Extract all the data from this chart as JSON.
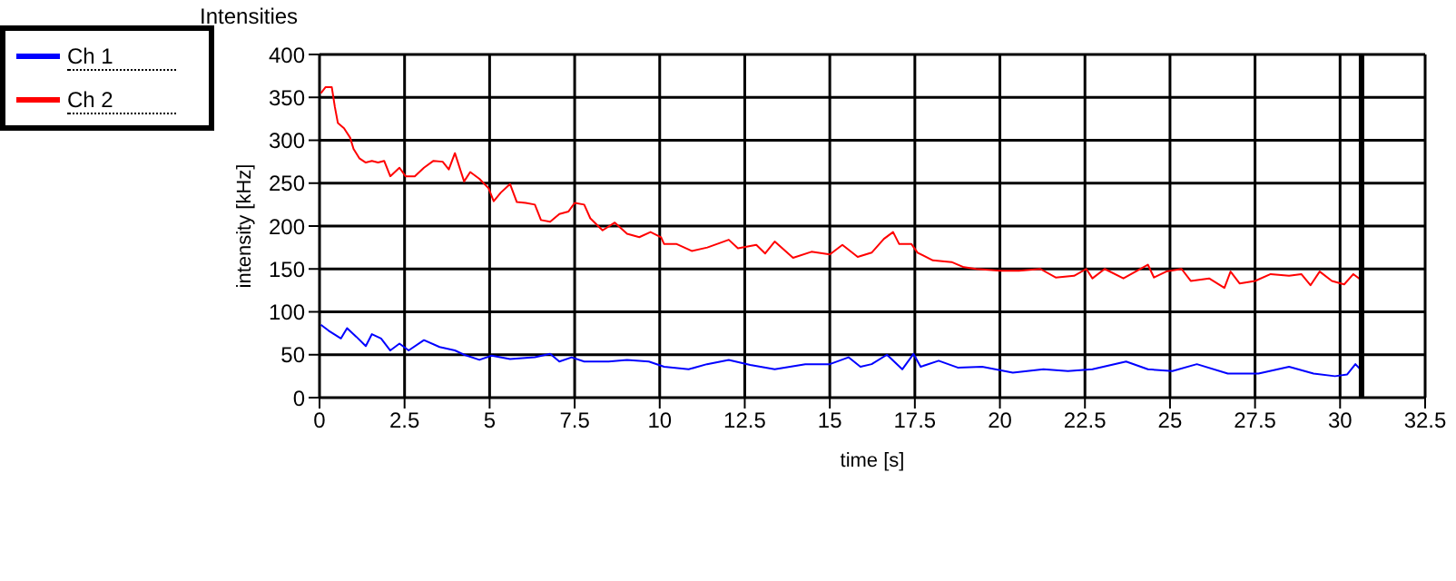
{
  "chart_data": {
    "type": "line",
    "title": "Intensities",
    "xlabel": "time [s]",
    "ylabel": "intensity [kHz]",
    "xlim": [
      0,
      32.5
    ],
    "xticks": [
      0,
      2.5,
      5,
      7.5,
      10,
      12.5,
      15,
      17.5,
      20,
      22.5,
      25,
      27.5,
      30,
      32.5
    ],
    "ylim": [
      0,
      400
    ],
    "yticks": [
      0,
      50,
      100,
      150,
      200,
      250,
      300,
      350,
      400
    ],
    "grid": true,
    "legend": "top left",
    "marker": "none",
    "line_style": "solid",
    "ref_lines": [
      {
        "axis": "x",
        "value": 30.63,
        "color": "#000000"
      }
    ],
    "series": [
      {
        "name": "Ch 1",
        "color": "#0000ff",
        "x": [
          0.04,
          0.27,
          0.63,
          0.81,
          1.08,
          1.36,
          1.54,
          1.81,
          2.08,
          2.35,
          2.62,
          3.07,
          3.53,
          3.98,
          4.25,
          4.7,
          5.06,
          5.6,
          6.33,
          6.78,
          7.05,
          7.41,
          7.78,
          8.5,
          9.04,
          9.68,
          10.13,
          10.85,
          11.39,
          12.03,
          12.66,
          13.38,
          14.28,
          15.0,
          15.55,
          15.9,
          16.23,
          16.68,
          17.13,
          17.46,
          17.67,
          18.2,
          18.76,
          19.48,
          20.38,
          21.28,
          22.0,
          22.72,
          23.71,
          24.35,
          25.07,
          25.79,
          26.7,
          27.6,
          28.5,
          29.22,
          29.85,
          30.21,
          30.45,
          30.62
        ],
        "values": [
          85,
          78,
          69,
          81,
          71,
          60,
          74,
          69,
          55,
          63,
          55,
          67,
          59,
          55,
          50,
          44,
          49,
          45,
          47,
          51,
          42,
          47,
          42,
          42,
          44,
          42,
          36,
          33,
          39,
          44,
          38,
          33,
          39,
          39,
          47,
          36,
          39,
          50,
          33,
          51,
          36,
          43,
          35,
          36,
          29,
          33,
          31,
          33,
          42,
          33,
          31,
          39,
          28,
          28,
          36,
          28,
          25,
          27,
          39,
          32
        ]
      },
      {
        "name": "Ch 2",
        "color": "#ff0000",
        "x": [
          0.04,
          0.18,
          0.36,
          0.45,
          0.54,
          0.72,
          0.9,
          1.0,
          1.17,
          1.36,
          1.54,
          1.72,
          1.9,
          2.08,
          2.35,
          2.53,
          2.8,
          3.07,
          3.35,
          3.62,
          3.8,
          3.98,
          4.25,
          4.43,
          4.7,
          4.97,
          5.12,
          5.33,
          5.6,
          5.8,
          6.06,
          6.33,
          6.51,
          6.78,
          7.05,
          7.32,
          7.5,
          7.78,
          7.96,
          8.32,
          8.68,
          9.04,
          9.4,
          9.73,
          10.04,
          10.13,
          10.5,
          10.94,
          11.4,
          12.03,
          12.3,
          12.84,
          13.1,
          13.38,
          13.92,
          14.46,
          15.0,
          15.37,
          15.82,
          16.23,
          16.59,
          16.86,
          17.04,
          17.4,
          17.58,
          18.03,
          18.58,
          18.94,
          19.3,
          20.02,
          20.56,
          21.19,
          21.64,
          22.18,
          22.54,
          22.72,
          23.08,
          23.63,
          24.35,
          24.53,
          24.89,
          25.34,
          25.61,
          26.15,
          26.6,
          26.78,
          27.05,
          27.5,
          27.96,
          28.5,
          28.86,
          29.13,
          29.4,
          29.76,
          30.12,
          30.39,
          30.62
        ],
        "values": [
          355,
          362,
          362,
          339,
          320,
          314,
          303,
          290,
          279,
          274,
          276,
          274,
          276,
          258,
          268,
          258,
          258,
          268,
          276,
          275,
          266,
          285,
          252,
          263,
          255,
          244,
          229,
          239,
          249,
          228,
          227,
          225,
          207,
          205,
          214,
          217,
          227,
          225,
          209,
          195,
          204,
          191,
          187,
          193,
          187,
          179,
          179,
          171,
          175,
          184,
          174,
          178,
          168,
          182,
          163,
          170,
          167,
          178,
          164,
          169,
          185,
          193,
          179,
          179,
          169,
          160,
          158,
          152,
          150,
          148,
          148,
          150,
          140,
          142,
          150,
          139,
          150,
          139,
          155,
          140,
          147,
          150,
          136,
          139,
          128,
          147,
          133,
          136,
          144,
          142,
          144,
          131,
          147,
          136,
          132,
          144,
          137
        ]
      }
    ]
  }
}
